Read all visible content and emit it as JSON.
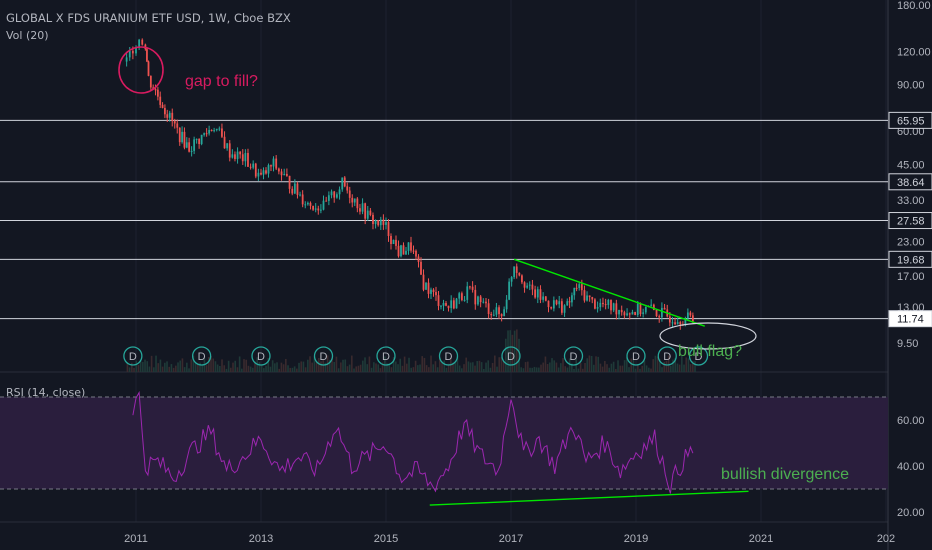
{
  "header": {
    "title": "GLOBAL X FDS URANIUM ETF USD, 1W, Cboe BZX",
    "volume": "Vol (20)"
  },
  "rsi_panel": {
    "label": "RSI (14, close)"
  },
  "colors": {
    "background": "#131722",
    "up": "#26a69a",
    "down": "#ef5350",
    "rsi_line": "#9c27b0",
    "rsi_band": "#2a1e3d",
    "trendline": "#00e600",
    "annotation_pink": "#d81b60",
    "annotation_green": "#4caf50",
    "dividend_marker": "#26a69a"
  },
  "chart_data": [
    {
      "type": "candlestick",
      "scale": "log",
      "x_ticks": [
        "2011",
        "2013",
        "2015",
        "2017",
        "2019",
        "2021",
        "202"
      ],
      "y_ticks": [
        180.0,
        120.0,
        90.0,
        60.0,
        45.0,
        33.0,
        23.0,
        17.0,
        13.0,
        9.5
      ],
      "horizontal_levels": [
        65.95,
        38.64,
        27.58,
        19.68,
        11.74
      ],
      "price_label": 11.74,
      "ylim": [
        7.5,
        190
      ],
      "series_points": [
        {
          "x": 2010.85,
          "y": 110
        },
        {
          "x": 2010.95,
          "y": 125
        },
        {
          "x": 2011.05,
          "y": 135
        },
        {
          "x": 2011.15,
          "y": 128
        },
        {
          "x": 2011.2,
          "y": 95
        },
        {
          "x": 2011.35,
          "y": 82
        },
        {
          "x": 2011.5,
          "y": 70
        },
        {
          "x": 2011.7,
          "y": 58
        },
        {
          "x": 2011.85,
          "y": 52
        },
        {
          "x": 2012.05,
          "y": 57
        },
        {
          "x": 2012.25,
          "y": 63
        },
        {
          "x": 2012.5,
          "y": 50
        },
        {
          "x": 2012.75,
          "y": 47
        },
        {
          "x": 2013.0,
          "y": 40
        },
        {
          "x": 2013.2,
          "y": 45
        },
        {
          "x": 2013.5,
          "y": 37
        },
        {
          "x": 2013.75,
          "y": 32
        },
        {
          "x": 2014.0,
          "y": 31
        },
        {
          "x": 2014.3,
          "y": 38
        },
        {
          "x": 2014.5,
          "y": 33
        },
        {
          "x": 2014.75,
          "y": 28
        },
        {
          "x": 2015.0,
          "y": 26
        },
        {
          "x": 2015.2,
          "y": 21
        },
        {
          "x": 2015.4,
          "y": 22
        },
        {
          "x": 2015.6,
          "y": 16
        },
        {
          "x": 2015.8,
          "y": 14
        },
        {
          "x": 2016.0,
          "y": 13
        },
        {
          "x": 2016.3,
          "y": 15
        },
        {
          "x": 2016.6,
          "y": 13
        },
        {
          "x": 2016.85,
          "y": 12
        },
        {
          "x": 2017.05,
          "y": 19
        },
        {
          "x": 2017.3,
          "y": 15
        },
        {
          "x": 2017.6,
          "y": 13.5
        },
        {
          "x": 2017.9,
          "y": 13
        },
        {
          "x": 2018.05,
          "y": 15.5
        },
        {
          "x": 2018.3,
          "y": 13.5
        },
        {
          "x": 2018.6,
          "y": 13
        },
        {
          "x": 2018.9,
          "y": 12.5
        },
        {
          "x": 2019.2,
          "y": 12.8
        },
        {
          "x": 2019.5,
          "y": 12
        },
        {
          "x": 2019.75,
          "y": 11.8
        },
        {
          "x": 2019.95,
          "y": 11.74
        }
      ],
      "dividend_markers": [
        2010.95,
        2012.05,
        2013.0,
        2014.0,
        2015.0,
        2016.0,
        2017.0,
        2018.0,
        2019.0,
        2019.5,
        2020.0
      ],
      "dividend_marker_label": "D",
      "annotations": [
        {
          "text": "gap to fill?"
        },
        {
          "text": "bull flag?"
        }
      ],
      "trendline": {
        "from": [
          2017.05,
          19.68
        ],
        "to": [
          2020.1,
          11.0
        ]
      }
    },
    {
      "type": "line",
      "title": "RSI (14, close)",
      "y_ticks": [
        60.0,
        40.0,
        20.0
      ],
      "ylim": [
        16,
        75
      ],
      "bands": [
        30,
        70
      ],
      "points": [
        {
          "x": 2010.95,
          "y": 66
        },
        {
          "x": 2011.05,
          "y": 70
        },
        {
          "x": 2011.15,
          "y": 40
        },
        {
          "x": 2011.35,
          "y": 42
        },
        {
          "x": 2011.6,
          "y": 35
        },
        {
          "x": 2011.9,
          "y": 47
        },
        {
          "x": 2012.2,
          "y": 55
        },
        {
          "x": 2012.45,
          "y": 38
        },
        {
          "x": 2012.75,
          "y": 45
        },
        {
          "x": 2013.0,
          "y": 52
        },
        {
          "x": 2013.3,
          "y": 38
        },
        {
          "x": 2013.6,
          "y": 44
        },
        {
          "x": 2013.9,
          "y": 38
        },
        {
          "x": 2014.2,
          "y": 58
        },
        {
          "x": 2014.45,
          "y": 40
        },
        {
          "x": 2014.7,
          "y": 44
        },
        {
          "x": 2015.0,
          "y": 50
        },
        {
          "x": 2015.25,
          "y": 35
        },
        {
          "x": 2015.5,
          "y": 38
        },
        {
          "x": 2015.75,
          "y": 31
        },
        {
          "x": 2016.0,
          "y": 40
        },
        {
          "x": 2016.25,
          "y": 58
        },
        {
          "x": 2016.5,
          "y": 45
        },
        {
          "x": 2016.8,
          "y": 38
        },
        {
          "x": 2017.0,
          "y": 72
        },
        {
          "x": 2017.2,
          "y": 45
        },
        {
          "x": 2017.45,
          "y": 52
        },
        {
          "x": 2017.7,
          "y": 40
        },
        {
          "x": 2018.0,
          "y": 58
        },
        {
          "x": 2018.2,
          "y": 42
        },
        {
          "x": 2018.5,
          "y": 50
        },
        {
          "x": 2018.75,
          "y": 38
        },
        {
          "x": 2019.0,
          "y": 46
        },
        {
          "x": 2019.3,
          "y": 52
        },
        {
          "x": 2019.55,
          "y": 32
        },
        {
          "x": 2019.75,
          "y": 42
        },
        {
          "x": 2019.95,
          "y": 48
        }
      ],
      "trendline": {
        "from": [
          2015.7,
          23
        ],
        "to": [
          2020.8,
          29
        ]
      },
      "annotations": [
        {
          "text": "bullish divergence"
        }
      ]
    }
  ]
}
